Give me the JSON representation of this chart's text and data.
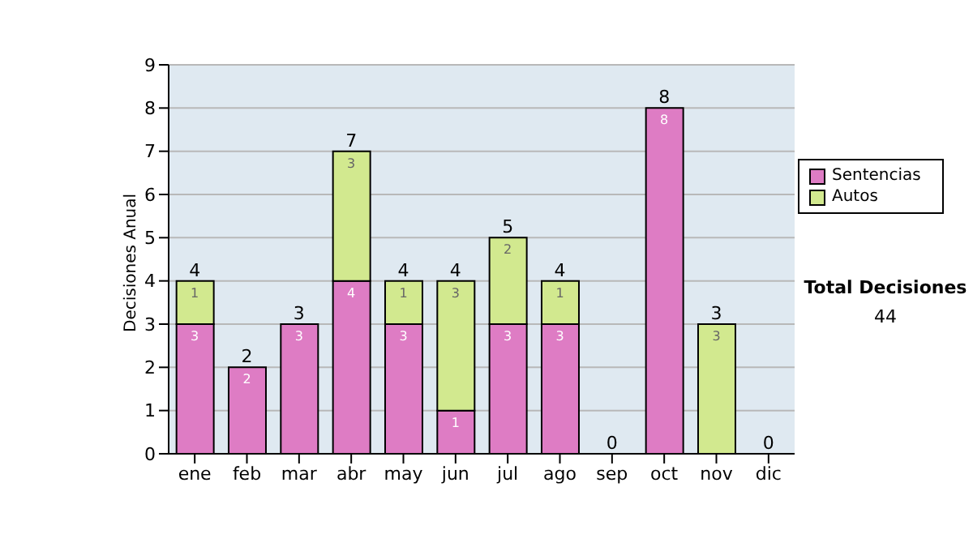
{
  "chart_data": {
    "type": "bar",
    "stacked": true,
    "ylabel": "Decisiones Anual",
    "categories": [
      "ene",
      "feb",
      "mar",
      "abr",
      "may",
      "jun",
      "jul",
      "ago",
      "sep",
      "oct",
      "nov",
      "dic"
    ],
    "series": [
      {
        "name": "Sentencias",
        "color": "#de7cc4",
        "values": [
          3,
          2,
          3,
          4,
          3,
          1,
          3,
          3,
          0,
          8,
          0,
          0
        ],
        "value_labels": [
          "3",
          "2",
          "3",
          "4",
          "3",
          "1",
          "3",
          "3",
          null,
          "8",
          null,
          null
        ]
      },
      {
        "name": "Autos",
        "color": "#d2e98f",
        "values": [
          1,
          0,
          0,
          3,
          1,
          3,
          2,
          1,
          0,
          0,
          3,
          0
        ],
        "value_labels": [
          "1",
          null,
          null,
          "3",
          "1",
          "3",
          "2",
          "1",
          null,
          null,
          "3",
          null
        ]
      }
    ],
    "totals": [
      "4",
      "2",
      "3",
      "7",
      "4",
      "4",
      "5",
      "4",
      "0",
      "8",
      "3",
      "0"
    ],
    "ylim": [
      0,
      9
    ],
    "yticks": [
      0,
      1,
      2,
      3,
      4,
      5,
      6,
      7,
      8,
      9
    ],
    "grid": "y",
    "legend": "right",
    "annotations": [
      "Total Decisiones",
      "44"
    ]
  }
}
